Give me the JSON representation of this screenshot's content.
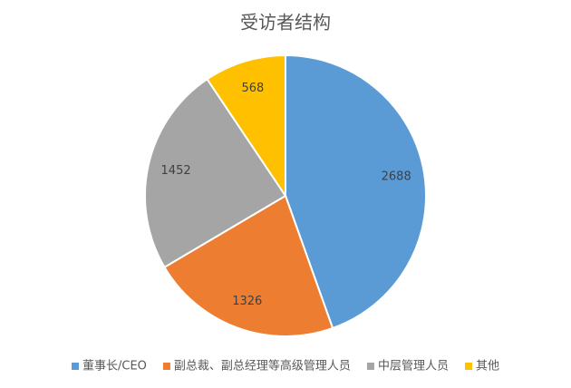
{
  "chart_data": {
    "type": "pie",
    "title": "受访者结构",
    "categories": [
      "董事长/CEO",
      "副总裁、副总经理等高级管理人员",
      "中层管理人员",
      "其他"
    ],
    "values": [
      2688,
      1326,
      1452,
      568
    ],
    "colors": [
      "#5b9bd5",
      "#ed7d31",
      "#a5a5a5",
      "#ffc000"
    ],
    "legend": "bottom"
  }
}
